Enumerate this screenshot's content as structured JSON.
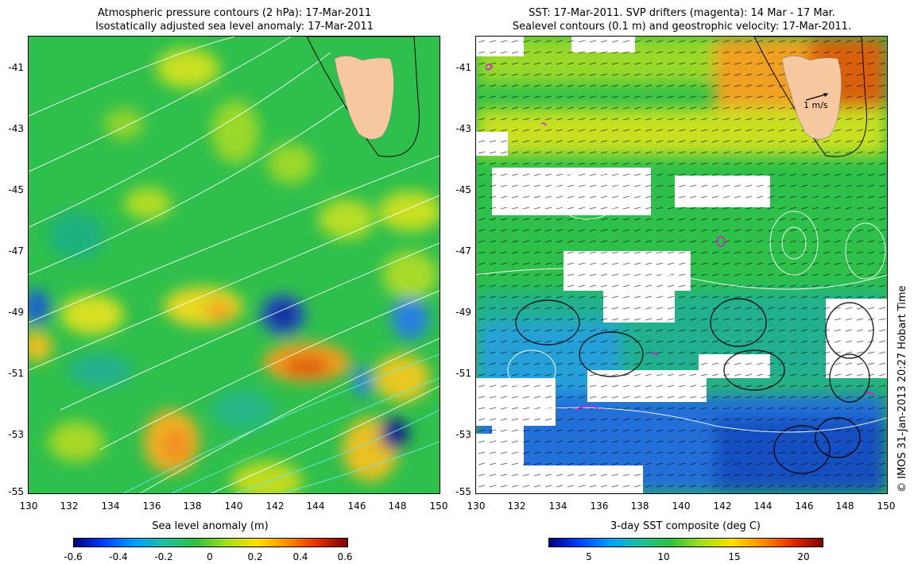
{
  "left": {
    "title_line1": "Atmospheric pressure contours (2 hPa): 17-Mar-2011",
    "title_line2": "Isostatically adjusted sea level anomaly: 17-Mar-2011",
    "colorbar_title": "Sea level anomaly (m)",
    "colorbar_labels": [
      "-0.6",
      "-0.4",
      "-0.2",
      "0",
      "0.2",
      "0.4",
      "0.6"
    ],
    "colors": {
      "land": "#f8c8a0",
      "ocean_base": "#33c04a"
    }
  },
  "right": {
    "title_line1": "SST: 17-Mar-2011. SVP drifters (magenta): 14 Mar - 17 Mar.",
    "title_line2": "Sealevel contours (0.1 m) and geostrophic velocity: 17-Mar-2011.",
    "colorbar_title": "3-day SST composite (deg C)",
    "colorbar_labels": [
      "5",
      "10",
      "15",
      "20"
    ],
    "velocity_scale_label": "1 m/s",
    "colors": {
      "land": "#f8c8a0",
      "drifter": "#d020d0"
    }
  },
  "axes": {
    "lat_ticks": [
      "-41",
      "-43",
      "-45",
      "-47",
      "-49",
      "-51",
      "-53",
      "-55"
    ],
    "lon_ticks": [
      "130",
      "132",
      "134",
      "136",
      "138",
      "140",
      "142",
      "144",
      "146",
      "148",
      "150"
    ]
  },
  "credit": "© IMOS 31-Jan-2013 20:27 Hobart Time"
}
